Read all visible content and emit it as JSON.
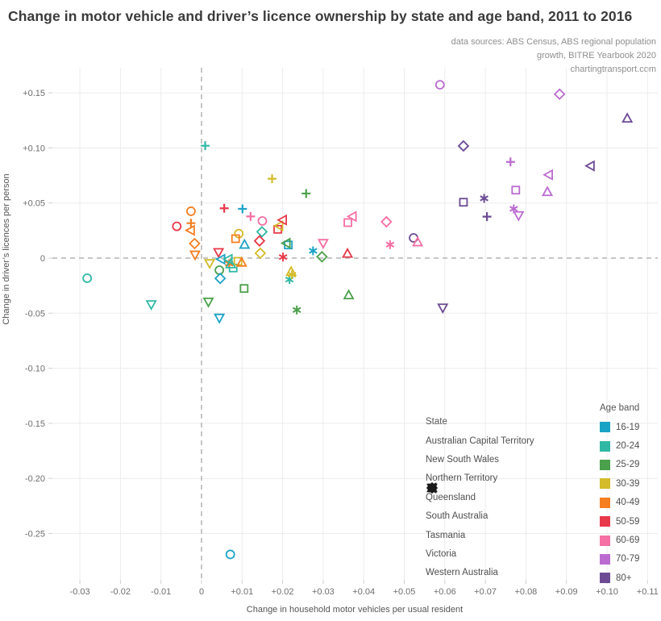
{
  "title": "Change in motor vehicle and driver’s licence ownership by state and age band, 2011 to 2016",
  "sources": [
    "data sources: ABS Census, ABS regional population",
    "growth, BITRE Yearbook 2020",
    "chartingtransport.com"
  ],
  "chart_data": {
    "type": "scatter",
    "xlabel": "Change in household motor vehicles per usual resident",
    "ylabel": "Change in driver’s licences per person",
    "xlim": [
      -0.037,
      0.113
    ],
    "ylim": [
      -0.295,
      0.175
    ],
    "grid": true,
    "zero_lines": "dashed",
    "x_ticks": [
      {
        "v": -0.03,
        "label": "-0.03"
      },
      {
        "v": -0.02,
        "label": "-0.02"
      },
      {
        "v": -0.01,
        "label": "-0.01"
      },
      {
        "v": 0,
        "label": "0"
      },
      {
        "v": 0.01,
        "label": "+0.01"
      },
      {
        "v": 0.02,
        "label": "+0.02"
      },
      {
        "v": 0.03,
        "label": "+0.03"
      },
      {
        "v": 0.04,
        "label": "+0.04"
      },
      {
        "v": 0.05,
        "label": "+0.05"
      },
      {
        "v": 0.06,
        "label": "+0.06"
      },
      {
        "v": 0.07,
        "label": "+0.07"
      },
      {
        "v": 0.08,
        "label": "+0.08"
      },
      {
        "v": 0.09,
        "label": "+0.09"
      },
      {
        "v": 0.1,
        "label": "+0.10"
      },
      {
        "v": 0.11,
        "label": "+0.11"
      }
    ],
    "y_ticks": [
      {
        "v": 0.15,
        "label": "+0.15"
      },
      {
        "v": 0.1,
        "label": "+0.10"
      },
      {
        "v": 0.05,
        "label": "+0.05"
      },
      {
        "v": 0,
        "label": "0"
      },
      {
        "v": -0.05,
        "label": "-0.05"
      },
      {
        "v": -0.1,
        "label": "-0.10"
      },
      {
        "v": -0.15,
        "label": "-0.15"
      },
      {
        "v": -0.2,
        "label": "-0.20"
      },
      {
        "v": -0.25,
        "label": "-0.25"
      }
    ],
    "age_colors": {
      "16-19": "#1ba3c6",
      "20-24": "#30b8a4",
      "25-29": "#4ba04b",
      "30-39": "#d4bb2a",
      "40-49": "#f57e20",
      "50-59": "#e8394a",
      "60-69": "#f56fa4",
      "70-79": "#bb6bd0",
      "80+": "#6d4b94"
    },
    "series": [
      {
        "state": "Australian Capital Territory",
        "marker": "circle",
        "points": [
          {
            "age": "16-19",
            "x": 0.0071,
            "y": -0.269
          },
          {
            "age": "20-24",
            "x": -0.0282,
            "y": -0.0183
          },
          {
            "age": "25-29",
            "x": 0.0044,
            "y": -0.011
          },
          {
            "age": "30-39",
            "x": 0.0092,
            "y": 0.0222
          },
          {
            "age": "40-49",
            "x": -0.0026,
            "y": 0.0425
          },
          {
            "age": "50-59",
            "x": -0.0061,
            "y": 0.0288
          },
          {
            "age": "60-69",
            "x": 0.015,
            "y": 0.0337
          },
          {
            "age": "70-79",
            "x": 0.0588,
            "y": 0.1573
          },
          {
            "age": "80+",
            "x": 0.0523,
            "y": 0.0183
          }
        ]
      },
      {
        "state": "New South Wales",
        "marker": "square",
        "points": [
          {
            "age": "16-19",
            "x": 0.0214,
            "y": 0.0119
          },
          {
            "age": "20-24",
            "x": 0.0078,
            "y": -0.009
          },
          {
            "age": "25-29",
            "x": 0.0105,
            "y": -0.0276
          },
          {
            "age": "30-39",
            "x": 0.009,
            "y": -0.0029
          },
          {
            "age": "40-49",
            "x": 0.0084,
            "y": 0.0176
          },
          {
            "age": "50-59",
            "x": 0.0188,
            "y": 0.0261
          },
          {
            "age": "60-69",
            "x": 0.0361,
            "y": 0.0322
          },
          {
            "age": "70-79",
            "x": 0.0775,
            "y": 0.0617
          },
          {
            "age": "80+",
            "x": 0.0646,
            "y": 0.0507
          }
        ]
      },
      {
        "state": "Northern Territory",
        "marker": "plus",
        "points": [
          {
            "age": "16-19",
            "x": 0.0101,
            "y": 0.0447
          },
          {
            "age": "20-24",
            "x": 0.0009,
            "y": 0.102
          },
          {
            "age": "25-29",
            "x": 0.0258,
            "y": 0.0586
          },
          {
            "age": "30-39",
            "x": 0.0174,
            "y": 0.072
          },
          {
            "age": "40-49",
            "x": -0.0026,
            "y": 0.0317
          },
          {
            "age": "50-59",
            "x": 0.0056,
            "y": 0.0452
          },
          {
            "age": "60-69",
            "x": 0.0121,
            "y": 0.0378
          },
          {
            "age": "70-79",
            "x": 0.0762,
            "y": 0.0873
          },
          {
            "age": "80+",
            "x": 0.0704,
            "y": 0.0376
          }
        ]
      },
      {
        "state": "Queensland",
        "marker": "asterisk",
        "points": [
          {
            "age": "16-19",
            "x": 0.0275,
            "y": 0.0066
          },
          {
            "age": "20-24",
            "x": 0.0217,
            "y": -0.0195
          },
          {
            "age": "25-29",
            "x": 0.0235,
            "y": -0.0471
          },
          {
            "age": "30-39",
            "x": 0.0223,
            "y": -0.015
          },
          {
            "age": "40-49",
            "x": 0.0068,
            "y": -0.005
          },
          {
            "age": "50-59",
            "x": 0.0201,
            "y": 0.0009
          },
          {
            "age": "60-69",
            "x": 0.0465,
            "y": 0.0122
          },
          {
            "age": "70-79",
            "x": 0.077,
            "y": 0.0447
          },
          {
            "age": "80+",
            "x": 0.0697,
            "y": 0.0542
          }
        ]
      },
      {
        "state": "South Australia",
        "marker": "diamond",
        "points": [
          {
            "age": "16-19",
            "x": 0.0046,
            "y": -0.0185
          },
          {
            "age": "20-24",
            "x": 0.0149,
            "y": 0.0239
          },
          {
            "age": "25-29",
            "x": 0.0297,
            "y": 0.0012
          },
          {
            "age": "30-39",
            "x": 0.0145,
            "y": 0.0044
          },
          {
            "age": "40-49",
            "x": -0.0017,
            "y": 0.0132
          },
          {
            "age": "50-59",
            "x": 0.0143,
            "y": 0.0156
          },
          {
            "age": "60-69",
            "x": 0.0456,
            "y": 0.0329
          },
          {
            "age": "70-79",
            "x": 0.0883,
            "y": 0.1488
          },
          {
            "age": "80+",
            "x": 0.0646,
            "y": 0.1018
          }
        ]
      },
      {
        "state": "Tasmania",
        "marker": "triangle-up",
        "points": [
          {
            "age": "16-19",
            "x": 0.0106,
            "y": 0.0124
          },
          {
            "age": "20-24",
            "x": 0.0072,
            "y": -0.0054
          },
          {
            "age": "25-29",
            "x": 0.0363,
            "y": -0.0335
          },
          {
            "age": "30-39",
            "x": 0.0221,
            "y": -0.0122
          },
          {
            "age": "40-49",
            "x": 0.0099,
            "y": -0.0039
          },
          {
            "age": "50-59",
            "x": 0.036,
            "y": 0.0042
          },
          {
            "age": "60-69",
            "x": 0.0533,
            "y": 0.0146
          },
          {
            "age": "70-79",
            "x": 0.0853,
            "y": 0.0602
          },
          {
            "age": "80+",
            "x": 0.105,
            "y": 0.1269
          }
        ]
      },
      {
        "state": "Victoria",
        "marker": "triangle-down",
        "points": [
          {
            "age": "16-19",
            "x": 0.0044,
            "y": -0.0544
          },
          {
            "age": "20-24",
            "x": -0.0124,
            "y": -0.0422
          },
          {
            "age": "25-29",
            "x": 0.0017,
            "y": -0.0398
          },
          {
            "age": "30-39",
            "x": 0.002,
            "y": -0.0049
          },
          {
            "age": "40-49",
            "x": -0.0016,
            "y": 0.0029
          },
          {
            "age": "50-59",
            "x": 0.0042,
            "y": 0.0051
          },
          {
            "age": "60-69",
            "x": 0.03,
            "y": 0.0134
          },
          {
            "age": "70-79",
            "x": 0.0782,
            "y": 0.0386
          },
          {
            "age": "80+",
            "x": 0.0595,
            "y": -0.0452
          }
        ]
      },
      {
        "state": "Western Australia",
        "marker": "triangle-left",
        "points": [
          {
            "age": "16-19",
            "x": 0.0048,
            "y": -0.001
          },
          {
            "age": "20-24",
            "x": 0.0066,
            "y": -0.001
          },
          {
            "age": "25-29",
            "x": 0.0209,
            "y": 0.0135
          },
          {
            "age": "30-39",
            "x": 0.0191,
            "y": 0.0293
          },
          {
            "age": "40-49",
            "x": -0.0027,
            "y": 0.0252
          },
          {
            "age": "50-59",
            "x": 0.02,
            "y": 0.0346
          },
          {
            "age": "60-69",
            "x": 0.0372,
            "y": 0.0378
          },
          {
            "age": "70-79",
            "x": 0.0856,
            "y": 0.0756
          },
          {
            "age": "80+",
            "x": 0.0959,
            "y": 0.0837
          }
        ]
      }
    ]
  },
  "legend_state": {
    "title": "State",
    "items": [
      {
        "label": "Australian Capital Territory",
        "marker": "circle"
      },
      {
        "label": "New South Wales",
        "marker": "square"
      },
      {
        "label": "Northern Territory",
        "marker": "plus"
      },
      {
        "label": "Queensland",
        "marker": "asterisk"
      },
      {
        "label": "South Australia",
        "marker": "diamond"
      },
      {
        "label": "Tasmania",
        "marker": "triangle-up"
      },
      {
        "label": "Victoria",
        "marker": "triangle-down"
      },
      {
        "label": "Western Australia",
        "marker": "triangle-left"
      }
    ]
  },
  "legend_age": {
    "title": "Age band",
    "items": [
      "16-19",
      "20-24",
      "25-29",
      "30-39",
      "40-49",
      "50-59",
      "60-69",
      "70-79",
      "80+"
    ]
  },
  "style": {
    "grid_color": "#ececec",
    "zero_line_color": "#c6c6c6",
    "tick_color": "#d0d0d0",
    "legend_marker_color": "#1a1a1a"
  }
}
